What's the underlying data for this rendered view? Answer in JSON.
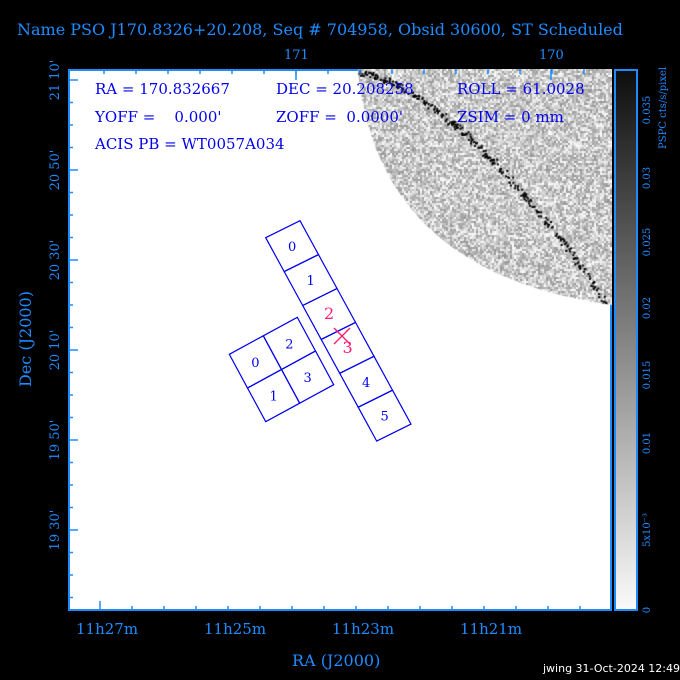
{
  "title": "Name PSO J170.8326+20.208, Seq # 704958, Obsid 30600, ST Scheduled",
  "info": {
    "ra": "RA = 170.832667",
    "dec": "DEC = 20.208258",
    "roll": "ROLL = 61.0028",
    "yoff": "YOFF =    0.000'",
    "zoff": "ZOFF =  0.0000'",
    "zsim": "ZSIM = 0 mm",
    "acis_pb": "ACIS PB = WT0057A034"
  },
  "axes": {
    "x_label": "RA (J2000)",
    "y_label": "Dec (J2000)",
    "x_ticks": [
      "11h27m",
      "11h25m",
      "11h23m",
      "11h21m"
    ],
    "top_ticks": [
      "171",
      "170"
    ],
    "y_ticks": [
      "21 10'",
      "20 50'",
      "20 30'",
      "20 10'",
      "19 50'",
      "19 30'"
    ]
  },
  "colorbar": {
    "label": "PSPC cts/s/pixel",
    "ticks": [
      "0",
      "5x10⁻³",
      "0.01",
      "0.015",
      "0.02",
      "0.025",
      "0.03",
      "0.035"
    ]
  },
  "chips": {
    "s_array": [
      "0",
      "1",
      "2",
      "3",
      "4",
      "5"
    ],
    "i_array": [
      "0",
      "1",
      "2",
      "3"
    ],
    "aimpoint_chip": "3",
    "highlight_color": "#ff1a6e",
    "chip_color": "#0000ee"
  },
  "footer": "jwing 31-Oct-2024 12:49"
}
